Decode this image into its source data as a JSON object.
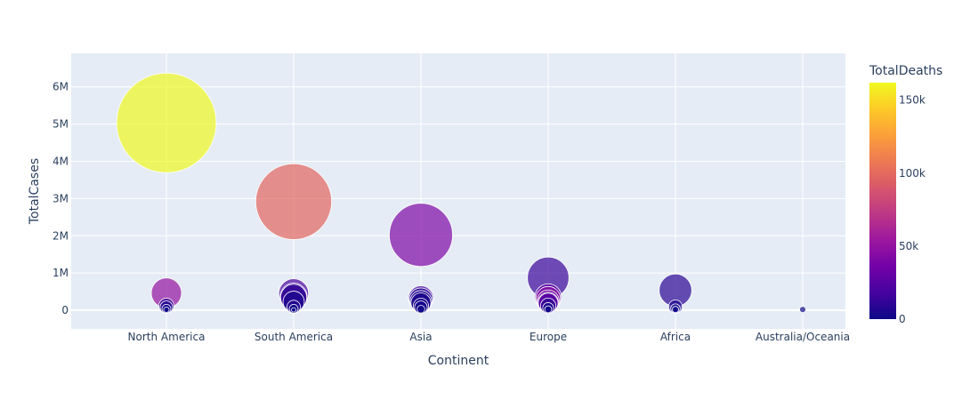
{
  "chart_data": {
    "type": "scatter",
    "title": "",
    "xlabel": "Continent",
    "ylabel": "TotalCases",
    "categories": [
      "North America",
      "South America",
      "Asia",
      "Europe",
      "Africa",
      "Australia/Oceania"
    ],
    "ylim": [
      -500000,
      6900000
    ],
    "y_ticks": [
      {
        "value": 0,
        "label": "0"
      },
      {
        "value": 1000000,
        "label": "1M"
      },
      {
        "value": 2000000,
        "label": "2M"
      },
      {
        "value": 3000000,
        "label": "3M"
      },
      {
        "value": 4000000,
        "label": "4M"
      },
      {
        "value": 5000000,
        "label": "5M"
      },
      {
        "value": 6000000,
        "label": "6M"
      }
    ],
    "colorbar": {
      "title": "TotalDeaths",
      "min": 0,
      "max": 162000,
      "ticks": [
        {
          "value": 0,
          "label": "0"
        },
        {
          "value": 50000,
          "label": "50k"
        },
        {
          "value": 100000,
          "label": "100k"
        },
        {
          "value": 150000,
          "label": "150k"
        }
      ],
      "colorscale": [
        "#0d0887",
        "#46039f",
        "#7201a8",
        "#9c179e",
        "#bd3786",
        "#d8576b",
        "#ed7953",
        "#fb9f3a",
        "#fdca26",
        "#f0f921"
      ]
    },
    "size_encoding": "TotalCases",
    "grid": true,
    "points": [
      {
        "continent": "North America",
        "cases": 5032179,
        "deaths": 162804
      },
      {
        "continent": "North America",
        "cases": 462690,
        "deaths": 50517
      },
      {
        "continent": "North America",
        "cases": 118561,
        "deaths": 9008
      },
      {
        "continent": "North America",
        "cases": 80000,
        "deaths": 3000
      },
      {
        "continent": "North America",
        "cases": 40000,
        "deaths": 1200
      },
      {
        "continent": "North America",
        "cases": 15000,
        "deaths": 300
      },
      {
        "continent": "South America",
        "cases": 2917562,
        "deaths": 98644
      },
      {
        "continent": "South America",
        "cases": 447624,
        "deaths": 20424
      },
      {
        "continent": "South America",
        "cases": 366671,
        "deaths": 9889
      },
      {
        "continent": "South America",
        "cases": 345714,
        "deaths": 11939
      },
      {
        "continent": "South America",
        "cases": 228316,
        "deaths": 4251
      },
      {
        "continent": "South America",
        "cases": 90000,
        "deaths": 5600
      },
      {
        "continent": "South America",
        "cases": 40000,
        "deaths": 1500
      },
      {
        "continent": "South America",
        "cases": 10000,
        "deaths": 200
      },
      {
        "continent": "Asia",
        "cases": 2025409,
        "deaths": 41638
      },
      {
        "continent": "Asia",
        "cases": 320117,
        "deaths": 17976
      },
      {
        "continent": "Asia",
        "cases": 281863,
        "deaths": 6035
      },
      {
        "continent": "Asia",
        "cases": 237878,
        "deaths": 5366
      },
      {
        "continent": "Asia",
        "cases": 200000,
        "deaths": 4000
      },
      {
        "continent": "Asia",
        "cases": 118753,
        "deaths": 5521
      },
      {
        "continent": "Asia",
        "cases": 80000,
        "deaths": 2000
      },
      {
        "continent": "Asia",
        "cases": 30000,
        "deaths": 500
      },
      {
        "continent": "Europe",
        "cases": 871894,
        "deaths": 14606
      },
      {
        "continent": "Europe",
        "cases": 354530,
        "deaths": 28500
      },
      {
        "continent": "Europe",
        "cases": 308134,
        "deaths": 46413
      },
      {
        "continent": "Europe",
        "cases": 248803,
        "deaths": 35171
      },
      {
        "continent": "Europe",
        "cases": 213067,
        "deaths": 9228
      },
      {
        "continent": "Europe",
        "cases": 195894,
        "deaths": 30312
      },
      {
        "continent": "Europe",
        "cases": 120000,
        "deaths": 9000
      },
      {
        "continent": "Europe",
        "cases": 60000,
        "deaths": 2500
      },
      {
        "continent": "Europe",
        "cases": 25000,
        "deaths": 700
      },
      {
        "continent": "Africa",
        "cases": 538184,
        "deaths": 9604
      },
      {
        "continent": "Africa",
        "cases": 95006,
        "deaths": 4951
      },
      {
        "continent": "Africa",
        "cases": 45000,
        "deaths": 1200
      },
      {
        "continent": "Africa",
        "cases": 20000,
        "deaths": 400
      },
      {
        "continent": "Australia/Oceania",
        "cases": 19890,
        "deaths": 255
      }
    ]
  }
}
